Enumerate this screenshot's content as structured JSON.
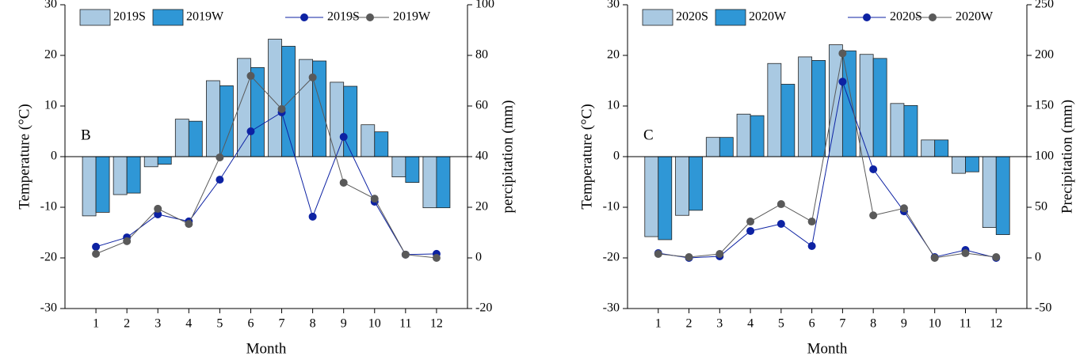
{
  "chart_data": [
    {
      "type": "bar",
      "panel_label": "B",
      "x_label": "Month",
      "y_label": "Temperature (°C)",
      "y2_label": "percipitation (mm)",
      "categories": [
        "1",
        "2",
        "3",
        "4",
        "5",
        "6",
        "7",
        "8",
        "9",
        "10",
        "11",
        "12"
      ],
      "ylim": [
        -30,
        30
      ],
      "yticks": [
        -30,
        -20,
        -10,
        0,
        10,
        20,
        30
      ],
      "y2lim": [
        -20,
        100
      ],
      "y2ticks": [
        -20,
        0,
        20,
        40,
        60,
        80,
        100
      ],
      "series": [
        {
          "name": "2019S",
          "type": "bar",
          "color": "#a9c9e2",
          "values": [
            -11.7,
            -7.5,
            -2,
            7.4,
            15,
            19.4,
            23.2,
            19.2,
            14.7,
            6.3,
            -4,
            -10.1
          ]
        },
        {
          "name": "2019W",
          "type": "bar",
          "color": "#2f97d6",
          "values": [
            -11,
            -7.2,
            -1.5,
            7,
            14,
            17.6,
            21.8,
            18.9,
            13.9,
            4.9,
            -5.1,
            -10.1
          ]
        },
        {
          "name": "2019S",
          "type": "line",
          "axis": "y2",
          "color": "#0d22a3",
          "values": [
            4.4,
            8.1,
            17.2,
            14.4,
            30.9,
            50,
            57.5,
            16.3,
            47.8,
            22.2,
            1.3,
            1.6
          ]
        },
        {
          "name": "2019W",
          "type": "line",
          "axis": "y2",
          "color": "#595959",
          "values": [
            1.6,
            6.6,
            19.4,
            13.4,
            39.7,
            71.9,
            58.8,
            71.3,
            29.7,
            23.4,
            1.3,
            0
          ]
        }
      ]
    },
    {
      "type": "bar",
      "panel_label": "C",
      "x_label": "Month",
      "y_label": "Temperature (°C)",
      "y2_label": "Precipitation (mm)",
      "categories": [
        "1",
        "2",
        "3",
        "4",
        "5",
        "6",
        "7",
        "8",
        "9",
        "10",
        "11",
        "12"
      ],
      "ylim": [
        -30,
        30
      ],
      "yticks": [
        -30,
        -20,
        -10,
        0,
        10,
        20,
        30
      ],
      "y2lim": [
        -50,
        250
      ],
      "y2ticks": [
        -50,
        0,
        50,
        100,
        150,
        200,
        250
      ],
      "series": [
        {
          "name": "2020S",
          "type": "bar",
          "color": "#a9c9e2",
          "values": [
            -15.8,
            -11.6,
            3.8,
            8.4,
            18.4,
            19.7,
            22.1,
            20.2,
            10.5,
            3.3,
            -3.3,
            -14
          ]
        },
        {
          "name": "2020W",
          "type": "bar",
          "color": "#2f97d6",
          "values": [
            -16.4,
            -10.6,
            3.8,
            8.1,
            14.3,
            19,
            20.9,
            19.4,
            10.1,
            3.3,
            -3,
            -15.4
          ]
        },
        {
          "name": "2020S",
          "type": "line",
          "axis": "y2",
          "color": "#0d22a3",
          "values": [
            4.7,
            0,
            1.6,
            26.6,
            33.6,
            11.7,
            174,
            87.5,
            46,
            0.8,
            7.8,
            0
          ]
        },
        {
          "name": "2020W",
          "type": "line",
          "axis": "y2",
          "color": "#595959",
          "values": [
            3.9,
            0.8,
            3.9,
            35.9,
            53.1,
            35.9,
            202,
            42,
            49,
            0,
            4.7,
            0.8
          ]
        }
      ]
    }
  ]
}
